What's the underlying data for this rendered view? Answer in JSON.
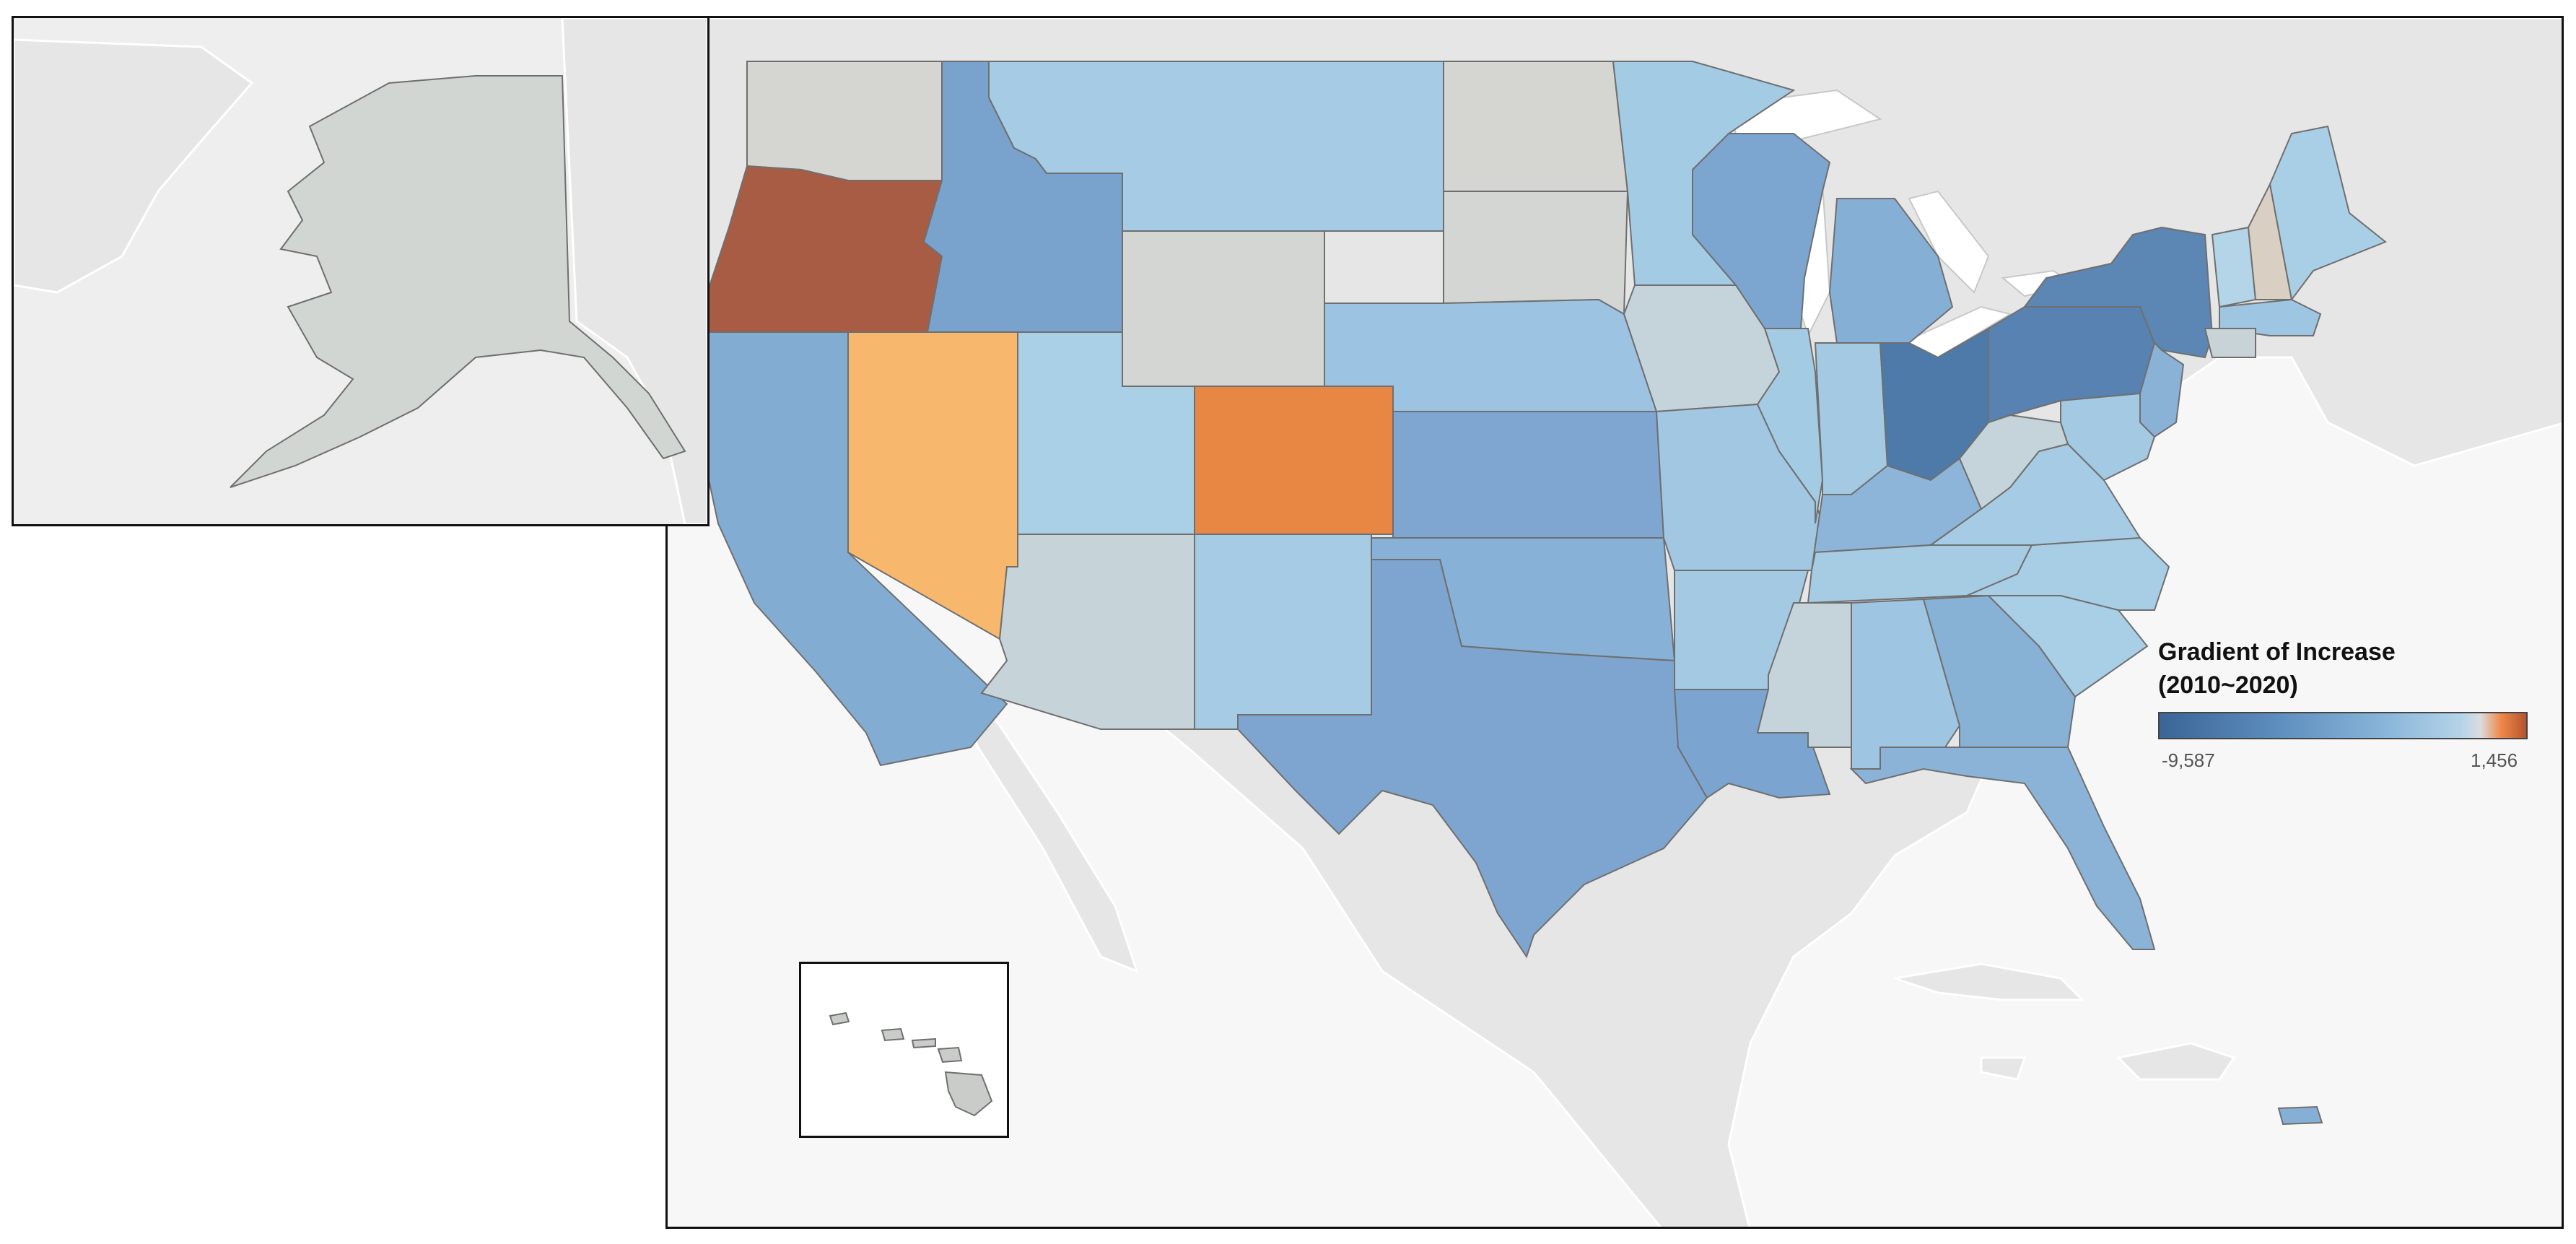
{
  "legend": {
    "title_line1": "Gradient of Increase",
    "title_line2": "(2010~2020)",
    "min_label": "-9,587",
    "max_label": "1,456",
    "min_value": -9587,
    "max_value": 1456,
    "colors": {
      "low": "#3a6596",
      "mid": "#d9dde0",
      "high": "#b3542e"
    }
  },
  "states": [
    {
      "id": "WA",
      "color": "#d5d6d2"
    },
    {
      "id": "OR",
      "color": "#a95c44"
    },
    {
      "id": "CA",
      "color": "#82acd2"
    },
    {
      "id": "NV",
      "color": "#f7b86d"
    },
    {
      "id": "ID",
      "color": "#79a2cc"
    },
    {
      "id": "MT",
      "color": "#a5cce4"
    },
    {
      "id": "WY",
      "color": "#d4d6d3"
    },
    {
      "id": "UT",
      "color": "#a9d0e6"
    },
    {
      "id": "AZ",
      "color": "#c6d3d9"
    },
    {
      "id": "CO",
      "color": "#e88644"
    },
    {
      "id": "NM",
      "color": "#a6cce5"
    },
    {
      "id": "ND",
      "color": "#d5d6d1"
    },
    {
      "id": "SD",
      "color": "#d3d6d3"
    },
    {
      "id": "NE",
      "color": "#9cc3e2"
    },
    {
      "id": "KS",
      "color": "#7fa6d1"
    },
    {
      "id": "OK",
      "color": "#87b1d6"
    },
    {
      "id": "TX",
      "color": "#7ea5cf"
    },
    {
      "id": "MN",
      "color": "#a4cbe4"
    },
    {
      "id": "IA",
      "color": "#c5d4da"
    },
    {
      "id": "MO",
      "color": "#a1c7e3"
    },
    {
      "id": "AR",
      "color": "#a3c9e3"
    },
    {
      "id": "LA",
      "color": "#7ba4d0"
    },
    {
      "id": "WI",
      "color": "#7ca5cf"
    },
    {
      "id": "IL",
      "color": "#a4cbe4"
    },
    {
      "id": "MI",
      "color": "#86afd6"
    },
    {
      "id": "IN",
      "color": "#a3c9e3"
    },
    {
      "id": "OH",
      "color": "#4e7aa9"
    },
    {
      "id": "KY",
      "color": "#8db5d9"
    },
    {
      "id": "TN",
      "color": "#a6cce4"
    },
    {
      "id": "MS",
      "color": "#c4d4da"
    },
    {
      "id": "AL",
      "color": "#9ec5e2"
    },
    {
      "id": "GA",
      "color": "#88b1d6"
    },
    {
      "id": "FL",
      "color": "#8bb3d8"
    },
    {
      "id": "SC",
      "color": "#a9cfe6"
    },
    {
      "id": "NC",
      "color": "#a8cee5"
    },
    {
      "id": "VA",
      "color": "#a6cce5"
    },
    {
      "id": "WV",
      "color": "#c4d4da"
    },
    {
      "id": "PA",
      "color": "#5882b1"
    },
    {
      "id": "NY",
      "color": "#5c86b4"
    },
    {
      "id": "NJ",
      "color": "#8ab2d7"
    },
    {
      "id": "MD",
      "color": "#a3c9e3"
    },
    {
      "id": "VT",
      "color": "#b4d4e8"
    },
    {
      "id": "NH",
      "color": "#d9cfc3"
    },
    {
      "id": "ME",
      "color": "#a9cfe6"
    },
    {
      "id": "MA",
      "color": "#9ec5e2"
    },
    {
      "id": "CT",
      "color": "#c8d3d8"
    },
    {
      "id": "AK",
      "color": "#d1d6d2"
    },
    {
      "id": "HI",
      "color": "#c9ccc9"
    },
    {
      "id": "PR",
      "color": "#86afd6"
    }
  ]
}
